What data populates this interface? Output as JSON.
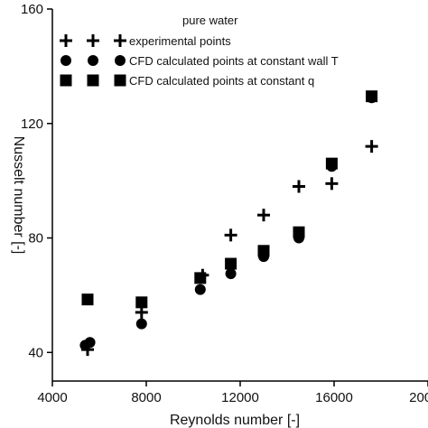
{
  "chart_data": {
    "type": "scatter",
    "title": "",
    "xlabel": "Reynolds number [-]",
    "ylabel": "Nusselt number [-]",
    "xlim": [
      4000,
      20000
    ],
    "ylim": [
      30,
      160
    ],
    "xticks": [
      "4000",
      "8000",
      "12000",
      "16000",
      "20000"
    ],
    "yticks": [
      "40",
      "80",
      "120",
      "160"
    ],
    "grid": false,
    "legend_title": "pure water",
    "legend_position": "top-left",
    "series": [
      {
        "name": "experimental points",
        "marker": "plus",
        "points": [
          [
            5500,
            41
          ],
          [
            7800,
            54
          ],
          [
            10400,
            67
          ],
          [
            11600,
            81
          ],
          [
            13000,
            88
          ],
          [
            14500,
            98
          ],
          [
            15900,
            99
          ],
          [
            17600,
            112
          ]
        ]
      },
      {
        "name": "CFD calculated points at constant wall T",
        "marker": "circle",
        "points": [
          [
            5400,
            42.5
          ],
          [
            5600,
            43.5
          ],
          [
            7800,
            50
          ],
          [
            10300,
            62
          ],
          [
            11600,
            67.5
          ],
          [
            13000,
            73.5
          ],
          [
            14500,
            80
          ],
          [
            15900,
            105
          ],
          [
            17600,
            129
          ]
        ]
      },
      {
        "name": "CFD calculated points at constant q",
        "marker": "square",
        "points": [
          [
            5500,
            58.5
          ],
          [
            7800,
            57.5
          ],
          [
            10300,
            66
          ],
          [
            11600,
            71
          ],
          [
            13000,
            75.5
          ],
          [
            14500,
            82
          ],
          [
            15900,
            106
          ],
          [
            17600,
            129.5
          ]
        ]
      }
    ]
  }
}
